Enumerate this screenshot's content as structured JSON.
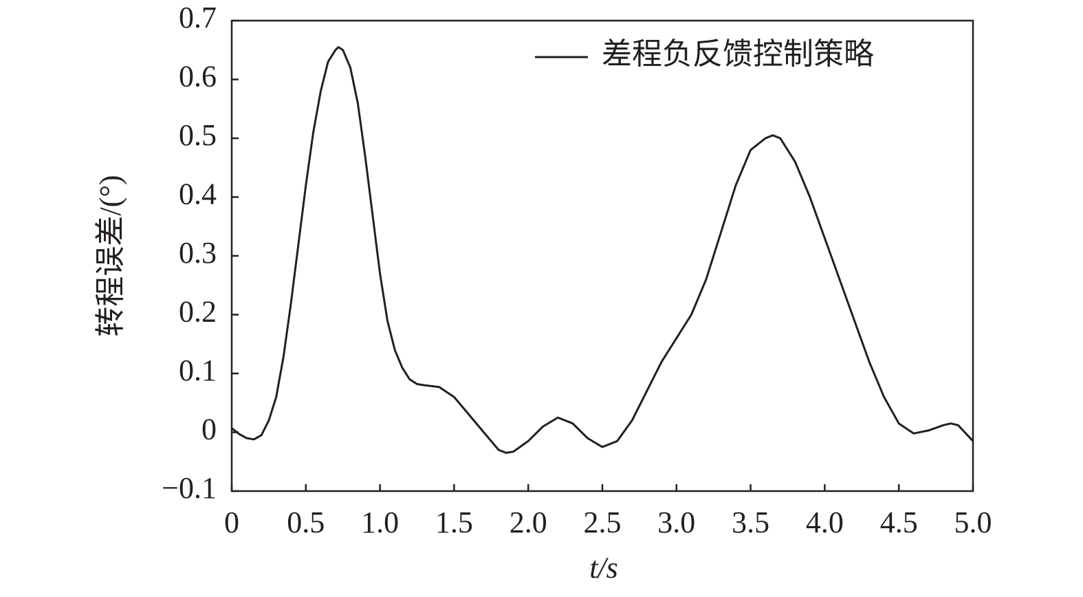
{
  "chart_data": {
    "type": "line",
    "x_label": "t/s",
    "y_label": "转程误差/(°)",
    "legend_position": "upper right",
    "xlim": [
      0,
      5
    ],
    "ylim": [
      -0.1,
      0.7
    ],
    "xticks": [
      0,
      0.5,
      {
        "value": 1,
        "label": "1.0"
      },
      1.5,
      {
        "value": 2,
        "label": "2.0"
      },
      2.5,
      {
        "value": 3,
        "label": "3.0"
      },
      3.5,
      {
        "value": 4,
        "label": "4.0"
      },
      4.5,
      {
        "value": 5,
        "label": "5.0"
      }
    ],
    "yticks": [
      {
        "value": -0.1,
        "label": "−0.1"
      },
      0,
      0.1,
      0.2,
      0.3,
      0.4,
      0.5,
      0.6,
      0.7
    ],
    "x": [
      0,
      0.05,
      0.1,
      0.15,
      0.2,
      0.25,
      0.3,
      0.35,
      0.4,
      0.45,
      0.5,
      0.55,
      0.6,
      0.65,
      0.7,
      0.72,
      0.75,
      0.8,
      0.85,
      0.9,
      0.95,
      1.0,
      1.05,
      1.1,
      1.15,
      1.2,
      1.25,
      1.3,
      1.4,
      1.5,
      1.6,
      1.7,
      1.8,
      1.85,
      1.9,
      2.0,
      2.1,
      2.2,
      2.3,
      2.4,
      2.5,
      2.6,
      2.7,
      2.8,
      2.9,
      3.0,
      3.1,
      3.2,
      3.3,
      3.4,
      3.5,
      3.6,
      3.65,
      3.7,
      3.8,
      3.9,
      4.0,
      4.1,
      4.2,
      4.3,
      4.4,
      4.5,
      4.6,
      4.7,
      4.8,
      4.85,
      4.9,
      5.0
    ],
    "series": [
      {
        "name": "差程负反馈控制策略",
        "color": "#231f20",
        "values": [
          0.007,
          -0.003,
          -0.01,
          -0.012,
          -0.005,
          0.02,
          0.06,
          0.13,
          0.22,
          0.32,
          0.42,
          0.51,
          0.58,
          0.63,
          0.65,
          0.655,
          0.65,
          0.62,
          0.56,
          0.47,
          0.37,
          0.27,
          0.19,
          0.14,
          0.11,
          0.09,
          0.082,
          0.08,
          0.077,
          0.06,
          0.03,
          0.0,
          -0.03,
          -0.035,
          -0.033,
          -0.015,
          0.01,
          0.025,
          0.015,
          -0.01,
          -0.025,
          -0.015,
          0.02,
          0.07,
          0.12,
          0.16,
          0.2,
          0.26,
          0.34,
          0.42,
          0.48,
          0.5,
          0.505,
          0.5,
          0.46,
          0.4,
          0.33,
          0.26,
          0.19,
          0.12,
          0.06,
          0.015,
          -0.002,
          0.003,
          0.012,
          0.015,
          0.012,
          -0.015
        ]
      }
    ]
  }
}
